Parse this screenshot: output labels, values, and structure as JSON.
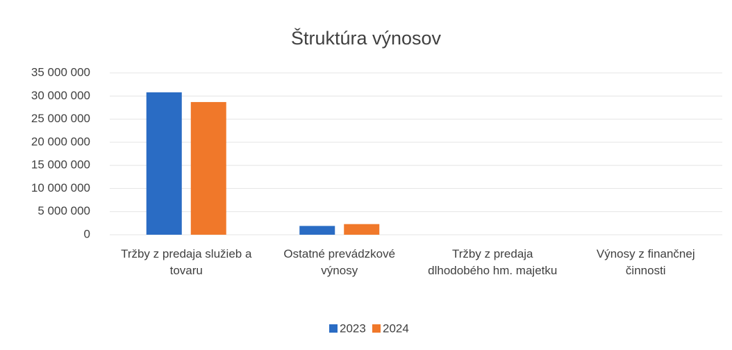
{
  "chart_data": {
    "type": "bar",
    "title": "Štruktúra výnosov",
    "categories": [
      "Tržby z predaja služieb a tovaru",
      "Ostatné prevádzkové výnosy",
      "Tržby z predaja dlhodobého hm. majetku",
      "Výnosy z finančnej činnosti"
    ],
    "series": [
      {
        "name": "2023",
        "color": "#2a6cc4",
        "values": [
          30800000,
          1900000,
          0,
          0
        ]
      },
      {
        "name": "2024",
        "color": "#f0782a",
        "values": [
          28700000,
          2300000,
          0,
          0
        ]
      }
    ],
    "ylim": [
      0,
      35000000
    ],
    "yticks": [
      0,
      {
        "value": 5000000,
        "label": "5 000 000"
      },
      {
        "value": 10000000,
        "label": "10 000 000"
      },
      {
        "value": 15000000,
        "label": "15 000 000"
      },
      {
        "value": 20000000,
        "label": "20 000 000"
      },
      {
        "value": 25000000,
        "label": "25 000 000"
      },
      {
        "value": 30000000,
        "label": "30 000 000"
      },
      {
        "value": 35000000,
        "label": "35 000 000"
      }
    ],
    "grid": true,
    "legend": "bottom"
  }
}
